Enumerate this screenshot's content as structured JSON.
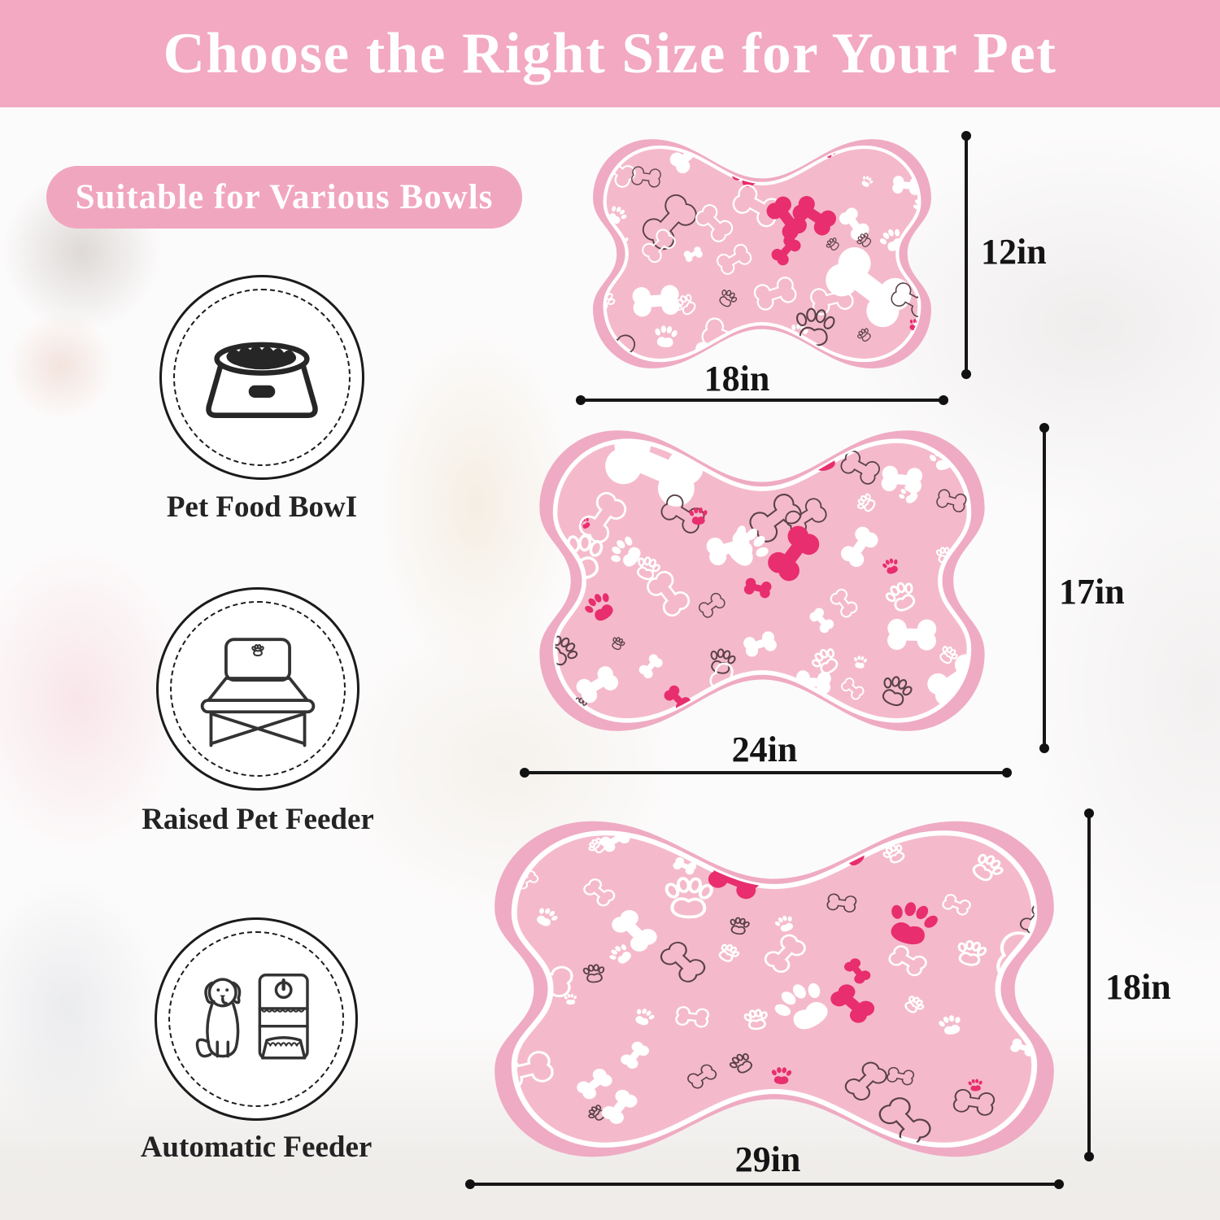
{
  "header": {
    "title": "Choose the Right Size for Your Pet"
  },
  "badge": {
    "label": "Suitable for Various Bowls"
  },
  "compatibility": {
    "items": [
      {
        "icon": "pet-food-bowl-icon",
        "label": "Pet Food BowI"
      },
      {
        "icon": "raised-pet-feeder-icon",
        "label": "Raised Pet Feeder"
      },
      {
        "icon": "automatic-feeder-icon",
        "label": "Automatic Feeder"
      }
    ]
  },
  "size_guide": {
    "mats": [
      {
        "id": "small",
        "width_label": "18in",
        "height_label": "12in"
      },
      {
        "id": "medium",
        "width_label": "24in",
        "height_label": "17in"
      },
      {
        "id": "large",
        "width_label": "29in",
        "height_label": "18in"
      }
    ]
  },
  "colors": {
    "header_pink": "#f2a9c1",
    "badge_pink": "#f1a6bf",
    "mat_border_pink": "#efabc3",
    "mat_fill_pink": "#f4bacb",
    "hot_pink": "#e82e6e",
    "motif_white": "#ffffff",
    "motif_outline_dark": "#5a4149",
    "dimension_ink": "#161616"
  }
}
